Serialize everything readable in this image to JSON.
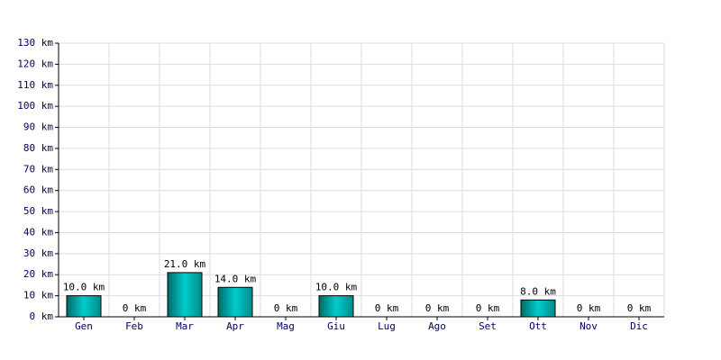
{
  "chart_data": {
    "type": "bar",
    "categories": [
      "Gen",
      "Feb",
      "Mar",
      "Apr",
      "Mag",
      "Giu",
      "Lug",
      "Ago",
      "Set",
      "Ott",
      "Nov",
      "Dic"
    ],
    "values": [
      10,
      0,
      21,
      14,
      0,
      10,
      0,
      0,
      0,
      8,
      0,
      0
    ],
    "value_labels": [
      "10.0 km",
      "0 km",
      "21.0 km",
      "14.0 km",
      "0 km",
      "10.0 km",
      "0 km",
      "0 km",
      "0 km",
      "8.0 km",
      "0 km",
      "0 km"
    ],
    "color": "#00cccc",
    "ylim": [
      0,
      130
    ],
    "yticks": [
      {
        "value": 0,
        "label": "0 km"
      },
      {
        "value": 10,
        "label": "10 km"
      },
      {
        "value": 20,
        "label": "20 km"
      },
      {
        "value": 30,
        "label": "30 km"
      },
      {
        "value": 40,
        "label": "40 km"
      },
      {
        "value": 50,
        "label": "50 km"
      },
      {
        "value": 60,
        "label": "60 km"
      },
      {
        "value": 70,
        "label": "70 km"
      },
      {
        "value": 80,
        "label": "80 km"
      },
      {
        "value": 90,
        "label": "90 km"
      },
      {
        "value": 100,
        "label": "100 km"
      },
      {
        "value": 110,
        "label": "110 km"
      },
      {
        "value": 120,
        "label": "120 km"
      },
      {
        "value": 130,
        "label": "130 km"
      }
    ],
    "grid": true
  }
}
